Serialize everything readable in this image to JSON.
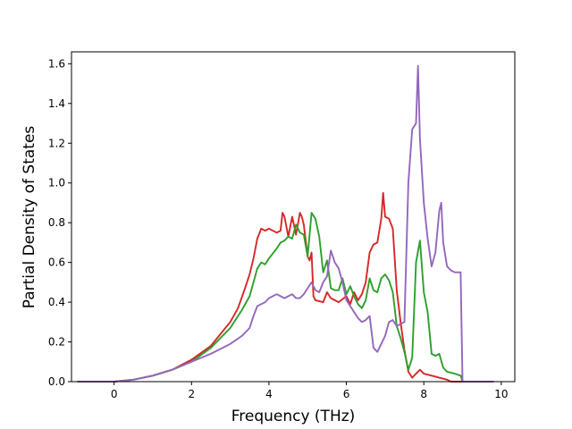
{
  "chart_data": {
    "type": "line",
    "title": "",
    "xlabel": "Frequency (THz)",
    "ylabel": "Partial Density of States",
    "xlim": [
      -1.1,
      10.35
    ],
    "ylim": [
      0.0,
      1.66
    ],
    "xticks": [
      0,
      2,
      4,
      6,
      8,
      10
    ],
    "yticks": [
      0.0,
      0.2,
      0.4,
      0.6,
      0.8,
      1.0,
      1.2,
      1.4,
      1.6
    ],
    "xtick_labels": [
      "0",
      "2",
      "4",
      "6",
      "8",
      "10"
    ],
    "ytick_labels": [
      "0.0",
      "0.2",
      "0.4",
      "0.6",
      "0.8",
      "1.0",
      "1.2",
      "1.4",
      "1.6"
    ],
    "grid": false,
    "legend": "none",
    "series": [
      {
        "color": "#d62728",
        "x": [
          -0.95,
          0,
          0.5,
          1.0,
          1.5,
          2.0,
          2.5,
          3.0,
          3.2,
          3.4,
          3.5,
          3.6,
          3.7,
          3.8,
          3.9,
          4.0,
          4.2,
          4.3,
          4.35,
          4.4,
          4.5,
          4.6,
          4.7,
          4.8,
          4.85,
          4.9,
          5.0,
          5.05,
          5.1,
          5.15,
          5.2,
          5.4,
          5.5,
          5.6,
          5.8,
          6.0,
          6.1,
          6.2,
          6.3,
          6.4,
          6.5,
          6.6,
          6.7,
          6.8,
          6.9,
          6.95,
          7.0,
          7.1,
          7.2,
          7.3,
          7.4,
          7.5,
          7.6,
          7.7,
          7.8,
          7.9,
          8.0,
          8.2,
          8.4,
          8.6,
          8.7,
          9.0,
          9.8
        ],
        "y": [
          0,
          0,
          0.01,
          0.03,
          0.06,
          0.11,
          0.18,
          0.3,
          0.37,
          0.48,
          0.54,
          0.62,
          0.72,
          0.77,
          0.76,
          0.77,
          0.75,
          0.76,
          0.85,
          0.83,
          0.73,
          0.83,
          0.74,
          0.85,
          0.83,
          0.79,
          0.63,
          0.61,
          0.65,
          0.43,
          0.41,
          0.4,
          0.45,
          0.42,
          0.4,
          0.43,
          0.39,
          0.45,
          0.41,
          0.44,
          0.5,
          0.65,
          0.69,
          0.7,
          0.82,
          0.95,
          0.83,
          0.82,
          0.77,
          0.46,
          0.3,
          0.16,
          0.05,
          0.02,
          0.04,
          0.06,
          0.04,
          0.03,
          0.02,
          0.01,
          0.0,
          0,
          0
        ]
      },
      {
        "color": "#2ca02c",
        "x": [
          -0.95,
          0,
          0.5,
          1.0,
          1.5,
          2.0,
          2.5,
          3.0,
          3.3,
          3.5,
          3.6,
          3.7,
          3.8,
          3.9,
          4.0,
          4.2,
          4.3,
          4.4,
          4.5,
          4.6,
          4.7,
          4.8,
          4.9,
          5.0,
          5.1,
          5.2,
          5.3,
          5.4,
          5.5,
          5.6,
          5.7,
          5.8,
          5.9,
          6.0,
          6.1,
          6.2,
          6.3,
          6.4,
          6.5,
          6.6,
          6.7,
          6.8,
          6.9,
          7.0,
          7.1,
          7.2,
          7.3,
          7.4,
          7.5,
          7.6,
          7.7,
          7.8,
          7.9,
          8.0,
          8.1,
          8.2,
          8.3,
          8.4,
          8.5,
          8.6,
          8.8,
          8.95,
          9.0,
          9.8
        ],
        "y": [
          0,
          0,
          0.01,
          0.03,
          0.06,
          0.1,
          0.17,
          0.27,
          0.36,
          0.43,
          0.5,
          0.57,
          0.6,
          0.59,
          0.62,
          0.67,
          0.7,
          0.71,
          0.73,
          0.72,
          0.79,
          0.75,
          0.74,
          0.63,
          0.85,
          0.82,
          0.73,
          0.55,
          0.61,
          0.47,
          0.46,
          0.46,
          0.52,
          0.44,
          0.48,
          0.43,
          0.39,
          0.37,
          0.41,
          0.52,
          0.46,
          0.45,
          0.52,
          0.54,
          0.51,
          0.45,
          0.28,
          0.22,
          0.15,
          0.06,
          0.12,
          0.6,
          0.71,
          0.45,
          0.35,
          0.14,
          0.13,
          0.14,
          0.07,
          0.05,
          0.04,
          0.03,
          0,
          0
        ]
      },
      {
        "color": "#9467bd",
        "x": [
          -0.95,
          0,
          0.5,
          1.0,
          1.5,
          2.0,
          2.5,
          3.0,
          3.3,
          3.5,
          3.6,
          3.7,
          3.8,
          3.9,
          4.0,
          4.2,
          4.3,
          4.4,
          4.5,
          4.6,
          4.7,
          4.8,
          4.9,
          5.0,
          5.1,
          5.2,
          5.3,
          5.4,
          5.5,
          5.6,
          5.7,
          5.8,
          5.9,
          6.0,
          6.1,
          6.2,
          6.3,
          6.4,
          6.5,
          6.6,
          6.7,
          6.8,
          6.9,
          7.0,
          7.1,
          7.2,
          7.3,
          7.4,
          7.5,
          7.6,
          7.7,
          7.8,
          7.85,
          7.9,
          8.0,
          8.1,
          8.2,
          8.3,
          8.4,
          8.45,
          8.5,
          8.6,
          8.7,
          8.8,
          8.95,
          9.0,
          9.8
        ],
        "y": [
          0,
          0,
          0.01,
          0.03,
          0.06,
          0.1,
          0.14,
          0.19,
          0.23,
          0.27,
          0.33,
          0.38,
          0.39,
          0.4,
          0.42,
          0.44,
          0.43,
          0.42,
          0.43,
          0.44,
          0.42,
          0.42,
          0.44,
          0.47,
          0.5,
          0.46,
          0.45,
          0.5,
          0.53,
          0.66,
          0.6,
          0.57,
          0.5,
          0.41,
          0.38,
          0.35,
          0.32,
          0.3,
          0.31,
          0.33,
          0.17,
          0.15,
          0.19,
          0.23,
          0.3,
          0.31,
          0.28,
          0.29,
          0.3,
          1.0,
          1.27,
          1.3,
          1.59,
          1.22,
          0.9,
          0.72,
          0.58,
          0.65,
          0.86,
          0.9,
          0.7,
          0.58,
          0.56,
          0.55,
          0.55,
          0,
          0
        ]
      }
    ]
  }
}
